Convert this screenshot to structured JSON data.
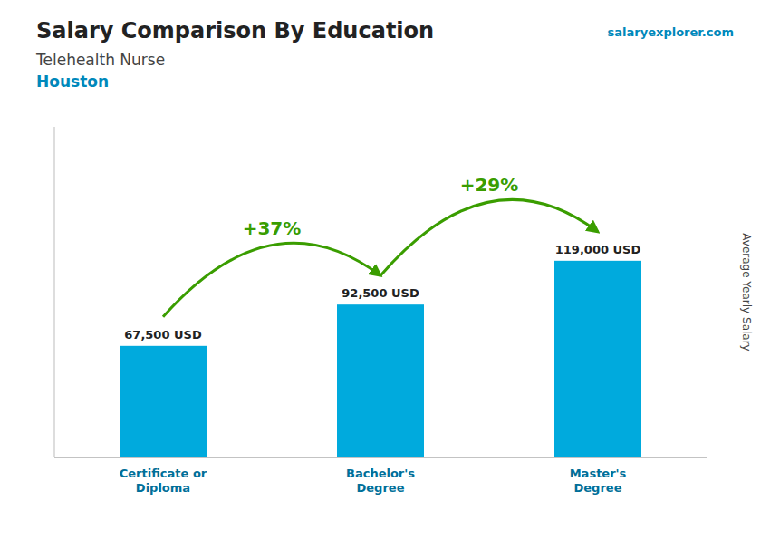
{
  "chart_data": {
    "type": "bar",
    "title": "Salary Comparison By Education",
    "subtitle": [
      "Telehealth Nurse",
      "Houston"
    ],
    "source": "salaryexplorer.com",
    "y_label": "Average Yearly Salary",
    "categories": [
      "Certificate or\nDiploma",
      "Bachelor's\nDegree",
      "Master's\nDegree"
    ],
    "values": [
      67500,
      92500,
      119000
    ],
    "value_labels": [
      "67,500 USD",
      "92,500 USD",
      "119,000 USD"
    ],
    "annotations": [
      "+37%",
      "+29%"
    ],
    "color": "#00AADD",
    "ylim": [
      0,
      200000
    ],
    "data_labels": true,
    "tick_labels": "x",
    "grid": false
  }
}
